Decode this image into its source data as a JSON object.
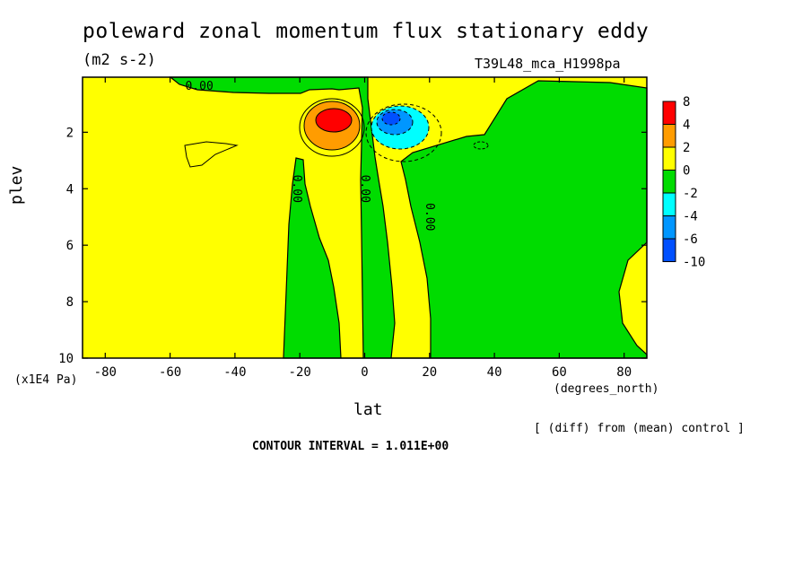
{
  "chart_data": {
    "type": "heatmap",
    "title": "poleward zonal momentum flux stationary eddy",
    "units": "(m2 s-2)",
    "run_label": "T39L48_mca_H1998pa",
    "xlabel": "lat",
    "x_units": "(degrees_north)",
    "ylabel": "plev",
    "y_units": "(x1E4 Pa)",
    "xlim": [
      -87,
      87
    ],
    "ylim": [
      10,
      0.05
    ],
    "x_ticks": [
      -80,
      -60,
      -40,
      -20,
      0,
      20,
      40,
      60,
      80
    ],
    "y_ticks": [
      2,
      4,
      6,
      8,
      10
    ],
    "x_tick_labels": [
      "-80",
      "-60",
      "-40",
      "-20",
      "0",
      "20",
      "40",
      "60",
      "80"
    ],
    "y_tick_labels": [
      "2",
      "4",
      "6",
      "8",
      "10"
    ],
    "contour_labels": [
      "0.00",
      "0.00",
      "0.00",
      "0.00"
    ],
    "colorbar": {
      "bounds": [
        8,
        4,
        2,
        0,
        -2,
        -4,
        -6,
        -10
      ],
      "labels": [
        "8",
        "4",
        "2",
        "0",
        "-2",
        "-4",
        "-6",
        "-10"
      ],
      "colors": [
        "#ff0000",
        "#ff9c00",
        "#ffff00",
        "#00dc00",
        "#00ffff",
        "#0096ff",
        "#0050ff"
      ]
    },
    "positive_max": {
      "lat": -10,
      "plev": 1.6,
      "value": 6.5
    },
    "negative_min": {
      "lat": 8,
      "plev": 1.6,
      "value": -7
    },
    "annotation_diff": "[ (diff) from (mean) control ]",
    "contour_interval": "CONTOUR INTERVAL = 1.011E+00"
  }
}
